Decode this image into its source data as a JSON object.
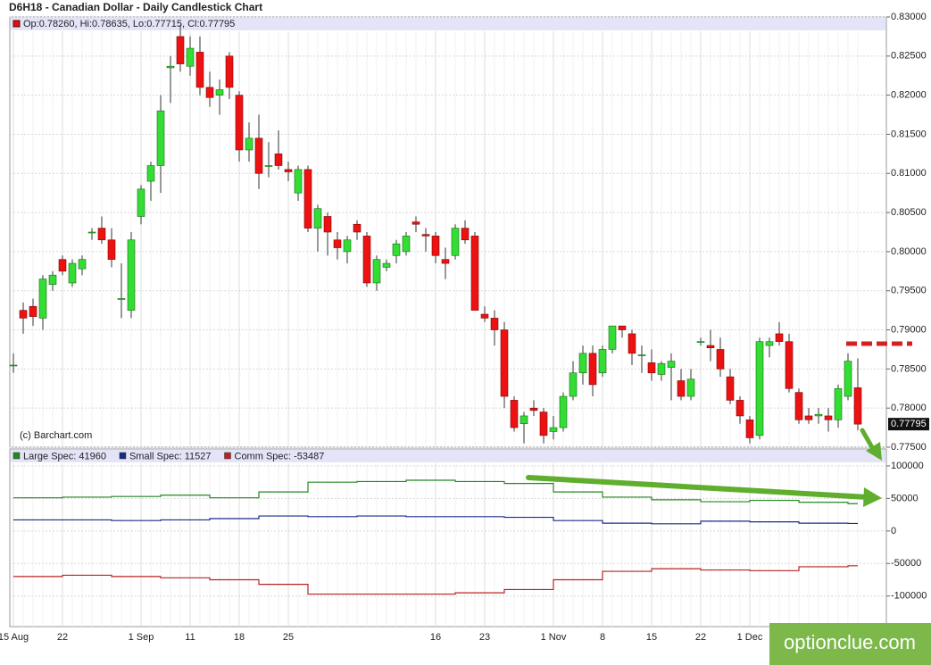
{
  "chart_data": {
    "type": "candlestick",
    "title": "D6H18 - Canadian Dollar - Daily Candlestick Chart",
    "info": "Op:0.78260, Hi:0.78635, Lo:0.77715, Cl:0.77795",
    "credit": "(c) Barchart.com",
    "watermark": "optionclue.com",
    "up_color": "#33dd33",
    "down_color": "#ee1111",
    "grid": true,
    "categories": [
      "15 Aug",
      null,
      null,
      null,
      null,
      "22",
      null,
      null,
      null,
      null,
      null,
      null,
      null,
      "1 Sep",
      null,
      null,
      null,
      null,
      "11",
      null,
      null,
      null,
      null,
      "18",
      null,
      null,
      null,
      null,
      "25",
      null,
      null,
      null,
      null,
      null,
      null,
      null,
      null,
      null,
      null,
      null,
      null,
      null,
      null,
      "16",
      null,
      null,
      null,
      null,
      "23",
      null,
      null,
      null,
      null,
      null,
      null,
      "1 Nov",
      null,
      null,
      null,
      null,
      "8",
      null,
      null,
      null,
      null,
      "15",
      null,
      null,
      null,
      null,
      "22",
      null,
      null,
      null,
      null,
      "1 Dec",
      null,
      null,
      null,
      null,
      null,
      null,
      null,
      null,
      null,
      null,
      null
    ],
    "ohlc": [
      [
        0.7855,
        0.787,
        0.7845,
        0.7855
      ],
      [
        0.7925,
        0.7935,
        0.7895,
        0.7915
      ],
      [
        0.793,
        0.794,
        0.7905,
        0.7917
      ],
      [
        0.7915,
        0.797,
        0.79,
        0.7965
      ],
      [
        0.7958,
        0.7975,
        0.795,
        0.797
      ],
      [
        0.799,
        0.7995,
        0.797,
        0.7975
      ],
      [
        0.796,
        0.799,
        0.7955,
        0.7985
      ],
      [
        0.7978,
        0.7995,
        0.797,
        0.799
      ],
      [
        0.8025,
        0.803,
        0.8015,
        0.8025
      ],
      [
        0.803,
        0.8045,
        0.801,
        0.8015
      ],
      [
        0.8015,
        0.803,
        0.798,
        0.799
      ],
      [
        0.794,
        0.7985,
        0.7915,
        0.794
      ],
      [
        0.7925,
        0.8025,
        0.7915,
        0.8015
      ],
      [
        0.8045,
        0.8085,
        0.8035,
        0.808
      ],
      [
        0.809,
        0.8115,
        0.8065,
        0.811
      ],
      [
        0.811,
        0.82,
        0.8075,
        0.818
      ],
      [
        0.8235,
        0.825,
        0.819,
        0.8237
      ],
      [
        0.8275,
        0.829,
        0.823,
        0.824
      ],
      [
        0.8237,
        0.8275,
        0.8225,
        0.826
      ],
      [
        0.8255,
        0.8275,
        0.82,
        0.821
      ],
      [
        0.821,
        0.823,
        0.8185,
        0.8197
      ],
      [
        0.82,
        0.822,
        0.8175,
        0.8207
      ],
      [
        0.825,
        0.8255,
        0.8195,
        0.821
      ],
      [
        0.82,
        0.8205,
        0.8115,
        0.813
      ],
      [
        0.813,
        0.8165,
        0.8115,
        0.8145
      ],
      [
        0.8145,
        0.8175,
        0.808,
        0.81
      ],
      [
        0.811,
        0.814,
        0.8095,
        0.811
      ],
      [
        0.8125,
        0.8155,
        0.8105,
        0.811
      ],
      [
        0.8105,
        0.8115,
        0.809,
        0.8102
      ],
      [
        0.8075,
        0.811,
        0.8065,
        0.8105
      ],
      [
        0.8105,
        0.811,
        0.8025,
        0.803
      ],
      [
        0.803,
        0.806,
        0.8,
        0.8055
      ],
      [
        0.8045,
        0.805,
        0.7995,
        0.8025
      ],
      [
        0.8015,
        0.8025,
        0.799,
        0.8005
      ],
      [
        0.8,
        0.802,
        0.7985,
        0.8015
      ],
      [
        0.8035,
        0.804,
        0.8015,
        0.8025
      ],
      [
        0.802,
        0.8025,
        0.7955,
        0.796
      ],
      [
        0.796,
        0.7995,
        0.795,
        0.799
      ],
      [
        0.798,
        0.799,
        0.7975,
        0.7985
      ],
      [
        0.7995,
        0.8015,
        0.7985,
        0.801
      ],
      [
        0.8,
        0.8025,
        0.7995,
        0.802
      ],
      [
        0.8038,
        0.8045,
        0.8025,
        0.8035
      ],
      [
        0.8022,
        0.803,
        0.8,
        0.802
      ],
      [
        0.802,
        0.8025,
        0.7985,
        0.7995
      ],
      [
        0.799,
        0.8005,
        0.7965,
        0.7985
      ],
      [
        0.7995,
        0.8035,
        0.799,
        0.803
      ],
      [
        0.803,
        0.804,
        0.801,
        0.8015
      ],
      [
        0.802,
        0.8025,
        0.7925,
        0.7925
      ],
      [
        0.792,
        0.793,
        0.791,
        0.7915
      ],
      [
        0.7915,
        0.7925,
        0.788,
        0.79
      ],
      [
        0.79,
        0.791,
        0.78,
        0.7815
      ],
      [
        0.781,
        0.7815,
        0.777,
        0.7775
      ],
      [
        0.778,
        0.7795,
        0.7755,
        0.779
      ],
      [
        0.78,
        0.781,
        0.779,
        0.7797
      ],
      [
        0.7795,
        0.78,
        0.7755,
        0.7765
      ],
      [
        0.777,
        0.779,
        0.776,
        0.7775
      ],
      [
        0.7775,
        0.782,
        0.777,
        0.7815
      ],
      [
        0.7815,
        0.786,
        0.781,
        0.7845
      ],
      [
        0.7845,
        0.788,
        0.783,
        0.787
      ],
      [
        0.787,
        0.788,
        0.7815,
        0.783
      ],
      [
        0.7845,
        0.788,
        0.784,
        0.7875
      ],
      [
        0.7875,
        0.7905,
        0.787,
        0.7905
      ],
      [
        0.7905,
        0.7905,
        0.789,
        0.79
      ],
      [
        0.7895,
        0.79,
        0.7855,
        0.787
      ],
      [
        0.7868,
        0.788,
        0.7845,
        0.7868
      ],
      [
        0.7858,
        0.7875,
        0.7835,
        0.7845
      ],
      [
        0.7843,
        0.786,
        0.7835,
        0.7857
      ],
      [
        0.7852,
        0.787,
        0.781,
        0.786
      ],
      [
        0.7835,
        0.785,
        0.781,
        0.7815
      ],
      [
        0.7815,
        0.785,
        0.781,
        0.7837
      ],
      [
        0.7885,
        0.789,
        0.788,
        0.7885
      ],
      [
        0.788,
        0.79,
        0.786,
        0.7877
      ],
      [
        0.7875,
        0.789,
        0.784,
        0.785
      ],
      [
        0.784,
        0.785,
        0.7805,
        0.781
      ],
      [
        0.781,
        0.7815,
        0.778,
        0.779
      ],
      [
        0.7785,
        0.779,
        0.7755,
        0.7762
      ],
      [
        0.7765,
        0.789,
        0.776,
        0.7885
      ],
      [
        0.788,
        0.789,
        0.7865,
        0.7885
      ],
      [
        0.7895,
        0.791,
        0.788,
        0.7885
      ],
      [
        0.7885,
        0.7895,
        0.782,
        0.7825
      ],
      [
        0.782,
        0.7825,
        0.778,
        0.7785
      ],
      [
        0.779,
        0.78,
        0.778,
        0.7785
      ],
      [
        0.779,
        0.78,
        0.778,
        0.7792
      ],
      [
        0.779,
        0.78,
        0.777,
        0.7785
      ],
      [
        0.7785,
        0.783,
        0.7775,
        0.7825
      ],
      [
        0.7815,
        0.787,
        0.781,
        0.786
      ],
      [
        0.7826,
        0.78635,
        0.77715,
        0.77795
      ]
    ],
    "ylim": [
      0.775,
      0.83
    ],
    "yticks": [
      {
        "value": 0.775,
        "label": "0.77500"
      },
      {
        "value": 0.78,
        "label": "0.78000"
      },
      {
        "value": 0.785,
        "label": "0.78500"
      },
      {
        "value": 0.79,
        "label": "0.79000"
      },
      {
        "value": 0.795,
        "label": "0.79500"
      },
      {
        "value": 0.8,
        "label": "0.80000"
      },
      {
        "value": 0.805,
        "label": "0.80500"
      },
      {
        "value": 0.81,
        "label": "0.81000"
      },
      {
        "value": 0.815,
        "label": "0.81500"
      },
      {
        "value": 0.82,
        "label": "0.82000"
      },
      {
        "value": 0.825,
        "label": "0.82500"
      },
      {
        "value": 0.83,
        "label": "0.83000"
      }
    ],
    "cot": {
      "type": "step",
      "ylim": [
        -147000,
        126000
      ],
      "yticks": [
        100000,
        50000,
        0,
        -50000,
        -100000
      ],
      "series": [
        {
          "name": "Large Spec",
          "legend": "Large Spec: 41960",
          "color": "#228822",
          "values": [
            51000,
            52000,
            53000,
            55000,
            51000,
            60000,
            75000,
            76000,
            78000,
            76000,
            73000,
            60000,
            52000,
            48000,
            45000,
            47000,
            44000,
            41960
          ]
        },
        {
          "name": "Small Spec",
          "legend": "Small Spec: 11527",
          "color": "#1a2a8a",
          "values": [
            17000,
            17000,
            16000,
            17000,
            19000,
            23000,
            22000,
            23000,
            22000,
            22000,
            21000,
            16000,
            12000,
            11000,
            15000,
            14000,
            12000,
            11527
          ]
        },
        {
          "name": "Comm Spec",
          "legend": "Comm Spec: -53487",
          "color": "#b82222",
          "values": [
            -70000,
            -68000,
            -70000,
            -72000,
            -75000,
            -82000,
            -97000,
            -97000,
            -97000,
            -95000,
            -90000,
            -75000,
            -62000,
            -58000,
            -60000,
            -61000,
            -55000,
            -53487
          ]
        }
      ]
    }
  }
}
